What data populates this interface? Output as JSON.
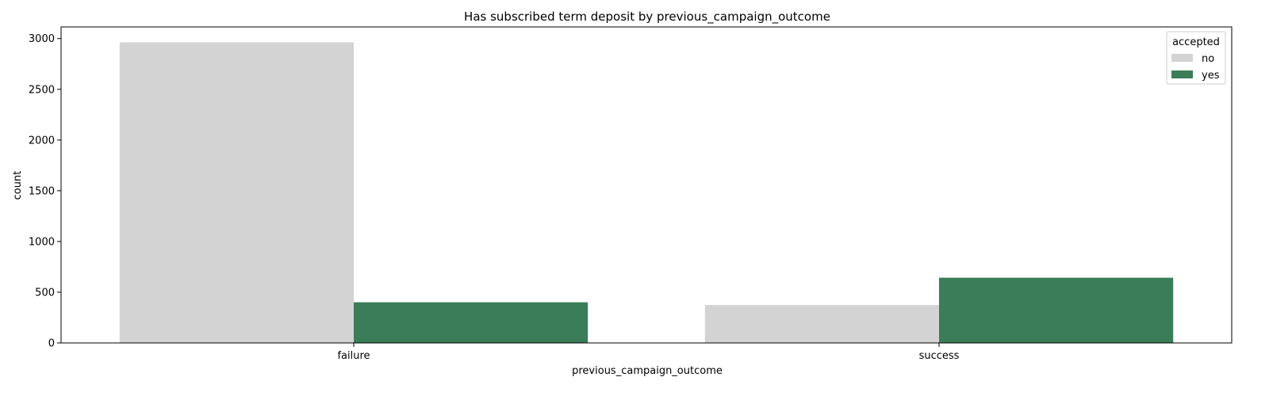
{
  "chart_data": {
    "type": "bar",
    "title": "Has subscribed term deposit by previous_campaign_outcome",
    "xlabel": "previous_campaign_outcome",
    "ylabel": "count",
    "categories": [
      "failure",
      "success"
    ],
    "series": [
      {
        "name": "no",
        "color": "#d3d3d3",
        "values": [
          2963,
          374
        ]
      },
      {
        "name": "yes",
        "color": "#3a7d58",
        "values": [
          401,
          643
        ]
      }
    ],
    "ylim": [
      0,
      3115
    ],
    "yticks": [
      0,
      500,
      1000,
      1500,
      2000,
      2500,
      3000
    ],
    "grid": false,
    "legend": {
      "title": "accepted",
      "placement": "top-right"
    }
  }
}
